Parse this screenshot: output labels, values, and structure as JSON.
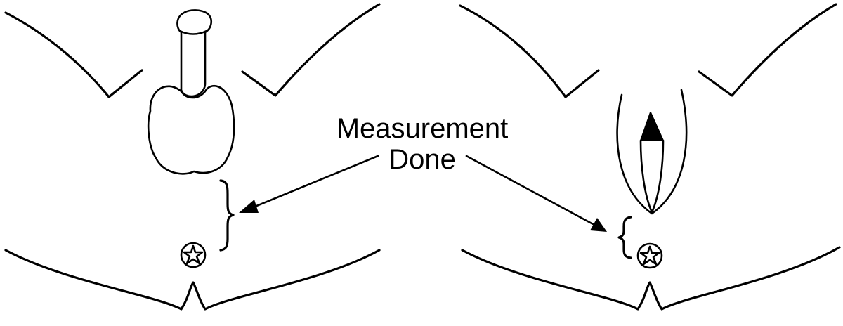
{
  "annotation": {
    "line1": "Measurement",
    "line2": "Done"
  },
  "colors": {
    "ink": "#000000",
    "background": "#ffffff"
  }
}
